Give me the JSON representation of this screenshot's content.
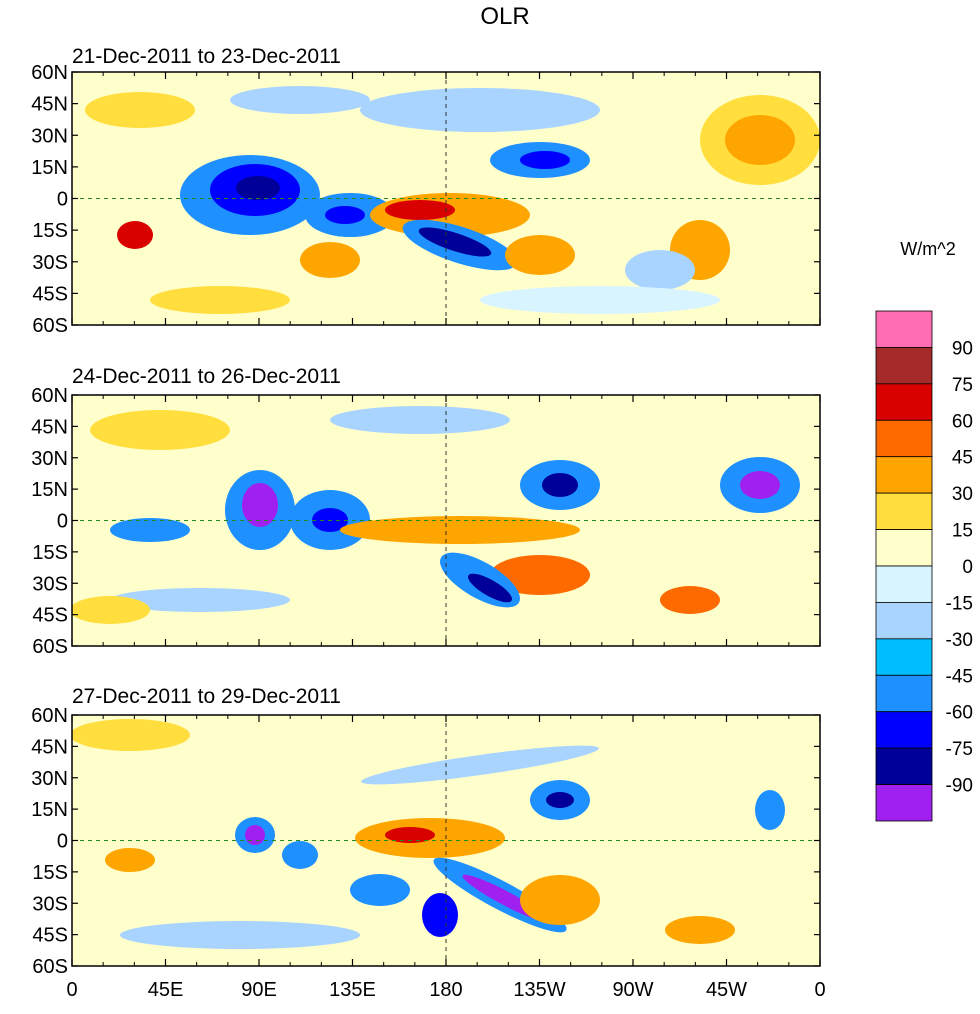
{
  "title": "OLR",
  "colorbar": {
    "unit_label": "W/m^2",
    "levels": [
      "90",
      "75",
      "60",
      "45",
      "30",
      "15",
      "0",
      "-15",
      "-30",
      "-45",
      "-60",
      "-75",
      "-90"
    ],
    "colors": [
      "#ff6eb4",
      "#a52a2a",
      "#d90000",
      "#ff6a00",
      "#ffa500",
      "#ffde3d",
      "#ffffcc",
      "#d8f4ff",
      "#a8d4ff",
      "#00bfff",
      "#1e90ff",
      "#0000ff",
      "#000099",
      "#a020f0"
    ]
  },
  "map_colors": {
    "coastline": "#228b22",
    "border": "#2e7d32",
    "equator_line": "#228b22"
  },
  "panels": [
    {
      "date_range": "21-Dec-2011 to 23-Dec-2011"
    },
    {
      "date_range": "24-Dec-2011 to 26-Dec-2011"
    },
    {
      "date_range": "27-Dec-2011 to 29-Dec-2011"
    }
  ],
  "lat_labels": [
    "60N",
    "45N",
    "30N",
    "15N",
    "0",
    "15S",
    "30S",
    "45S",
    "60S"
  ],
  "lon_labels": [
    "0",
    "45E",
    "90E",
    "135E",
    "180",
    "135W",
    "90W",
    "45W",
    "0"
  ]
}
